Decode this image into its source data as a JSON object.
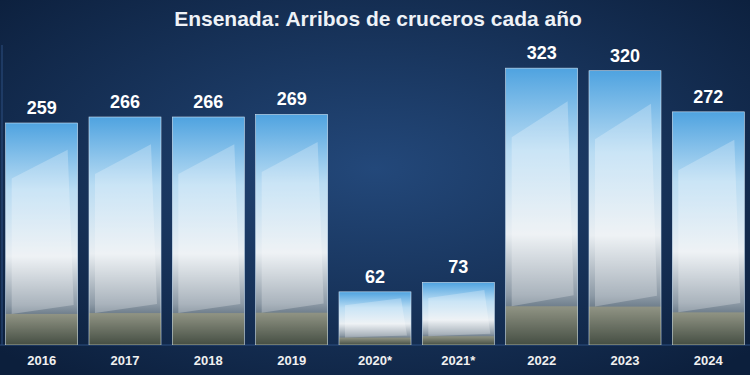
{
  "chart_data": {
    "type": "bar",
    "title": "Ensenada: Arribos de cruceros cada año",
    "categories": [
      "2016",
      "2017",
      "2018",
      "2019",
      "2020*",
      "2021*",
      "2022",
      "2023",
      "2024"
    ],
    "values": [
      259,
      266,
      266,
      269,
      62,
      73,
      323,
      320,
      272
    ],
    "color": "#4fa3e0",
    "ylim": [
      0,
      350
    ],
    "yticks": [],
    "grid": false,
    "data_labels": true,
    "tick_labels": "x"
  }
}
